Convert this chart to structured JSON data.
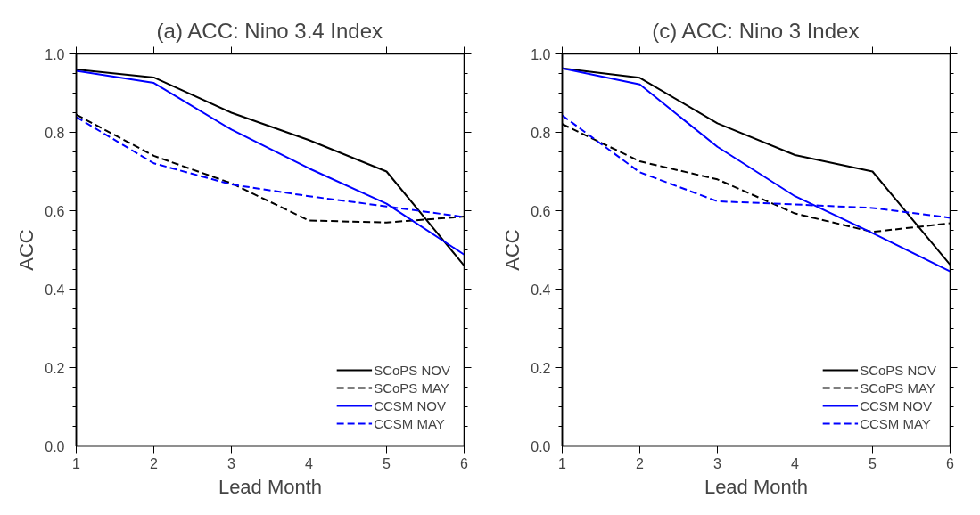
{
  "chart_data": [
    {
      "type": "line",
      "title": "(a) ACC: Nino 3.4 Index",
      "xlabel": "Lead Month",
      "ylabel": "ACC",
      "x": [
        1,
        2,
        3,
        4,
        5,
        6
      ],
      "xlim": [
        1,
        6
      ],
      "xticks": [
        1,
        2,
        3,
        4,
        5,
        6
      ],
      "ylim": [
        0,
        1
      ],
      "yticks": [
        {
          "value": 0,
          "label": "0.0"
        },
        {
          "value": 0.2,
          "label": "0.2"
        },
        {
          "value": 0.4,
          "label": "0.4"
        },
        {
          "value": 0.6,
          "label": "0.6"
        },
        {
          "value": 0.8,
          "label": "0.8"
        },
        {
          "value": 1,
          "label": "1.0"
        }
      ],
      "grid": false,
      "legend": "bottom right",
      "series": [
        {
          "name": "SCoPS NOV",
          "color": "#000000",
          "line_style": "solid",
          "values": [
            0.96,
            0.94,
            0.85,
            0.78,
            0.7,
            0.46
          ]
        },
        {
          "name": "SCoPS MAY",
          "color": "#000000",
          "line_style": "dashed",
          "values": [
            0.845,
            0.74,
            0.67,
            0.575,
            0.57,
            0.585
          ]
        },
        {
          "name": "CCSM NOV",
          "color": "#0000ff",
          "line_style": "solid",
          "values": [
            0.957,
            0.926,
            0.807,
            0.708,
            0.618,
            0.488
          ]
        },
        {
          "name": "CCSM MAY",
          "color": "#0000ff",
          "line_style": "dashed",
          "values": [
            0.839,
            0.721,
            0.667,
            0.637,
            0.611,
            0.584
          ]
        }
      ]
    },
    {
      "type": "line",
      "title": "(c) ACC: Nino 3 Index",
      "xlabel": "Lead Month",
      "ylabel": "ACC",
      "x": [
        1,
        2,
        3,
        4,
        5,
        6
      ],
      "xlim": [
        1,
        6
      ],
      "xticks": [
        1,
        2,
        3,
        4,
        5,
        6
      ],
      "ylim": [
        0,
        1
      ],
      "yticks": [
        {
          "value": 0,
          "label": "0.0"
        },
        {
          "value": 0.2,
          "label": "0.2"
        },
        {
          "value": 0.4,
          "label": "0.4"
        },
        {
          "value": 0.6,
          "label": "0.6"
        },
        {
          "value": 0.8,
          "label": "0.8"
        },
        {
          "value": 1,
          "label": "1.0"
        }
      ],
      "grid": false,
      "legend": "bottom right",
      "series": [
        {
          "name": "SCoPS NOV",
          "color": "#000000",
          "line_style": "solid",
          "values": [
            0.963,
            0.939,
            0.823,
            0.742,
            0.7,
            0.462
          ]
        },
        {
          "name": "SCoPS MAY",
          "color": "#000000",
          "line_style": "dashed",
          "values": [
            0.821,
            0.726,
            0.68,
            0.593,
            0.546,
            0.568
          ]
        },
        {
          "name": "CCSM NOV",
          "color": "#0000ff",
          "line_style": "solid",
          "values": [
            0.963,
            0.922,
            0.763,
            0.637,
            0.543,
            0.445
          ]
        },
        {
          "name": "CCSM MAY",
          "color": "#0000ff",
          "line_style": "dashed",
          "values": [
            0.843,
            0.698,
            0.624,
            0.616,
            0.607,
            0.582
          ]
        }
      ]
    }
  ]
}
